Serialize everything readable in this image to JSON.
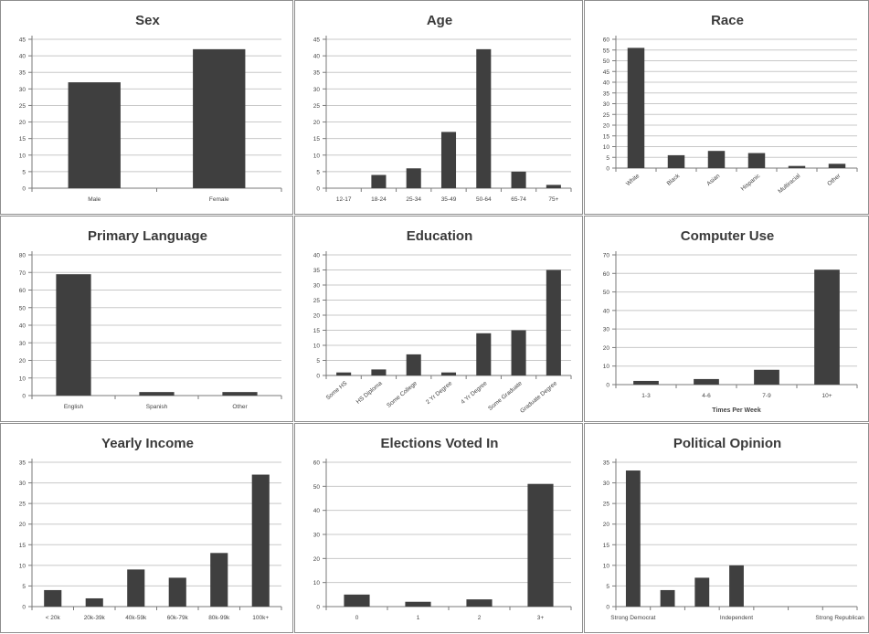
{
  "colors": {
    "bar": "#3f3f3f",
    "grid": "#c8c8c8",
    "axis": "#7a7a7a",
    "text": "#444444",
    "border": "#8e8e8e",
    "background": "#ffffff"
  },
  "chart_data": [
    {
      "type": "bar",
      "title": "Sex",
      "xlabel": "",
      "ylabel": "",
      "categories": [
        "Male",
        "Female"
      ],
      "values": [
        32,
        42
      ],
      "ylim": [
        0,
        45
      ],
      "yticks": [
        0,
        5,
        10,
        15,
        20,
        25,
        30,
        35,
        40,
        45
      ],
      "grid": true,
      "legend": "none",
      "rotate_labels": false
    },
    {
      "type": "bar",
      "title": "Age",
      "xlabel": "",
      "ylabel": "",
      "categories": [
        "12-17",
        "18-24",
        "25-34",
        "35-49",
        "50-64",
        "65-74",
        "75+"
      ],
      "values": [
        0,
        4,
        6,
        17,
        42,
        5,
        1
      ],
      "ylim": [
        0,
        45
      ],
      "yticks": [
        0,
        5,
        10,
        15,
        20,
        25,
        30,
        35,
        40,
        45
      ],
      "grid": true,
      "legend": "none",
      "rotate_labels": false
    },
    {
      "type": "bar",
      "title": "Race",
      "xlabel": "",
      "ylabel": "",
      "categories": [
        "White",
        "Black",
        "Asian",
        "Hispanic",
        "Multiracial",
        "Other"
      ],
      "values": [
        56,
        6,
        8,
        7,
        1,
        2
      ],
      "ylim": [
        0,
        60
      ],
      "yticks": [
        0,
        5,
        10,
        15,
        20,
        25,
        30,
        35,
        40,
        45,
        50,
        55,
        60
      ],
      "grid": true,
      "legend": "none",
      "rotate_labels": true
    },
    {
      "type": "bar",
      "title": "Primary Language",
      "xlabel": "",
      "ylabel": "",
      "categories": [
        "English",
        "Spanish",
        "Other"
      ],
      "values": [
        69,
        2,
        2
      ],
      "ylim": [
        0,
        80
      ],
      "yticks": [
        0,
        10,
        20,
        30,
        40,
        50,
        60,
        70,
        80
      ],
      "grid": true,
      "legend": "none",
      "rotate_labels": false
    },
    {
      "type": "bar",
      "title": "Education",
      "xlabel": "",
      "ylabel": "",
      "categories": [
        "Some HS",
        "HS Diploma",
        "Some College",
        "2 Yr Degree",
        "4 Yr Degree",
        "Some Graduate",
        "Graduate Degree"
      ],
      "values": [
        1,
        2,
        7,
        1,
        14,
        15,
        35
      ],
      "ylim": [
        0,
        40
      ],
      "yticks": [
        0,
        5,
        10,
        15,
        20,
        25,
        30,
        35,
        40
      ],
      "grid": true,
      "legend": "none",
      "rotate_labels": true
    },
    {
      "type": "bar",
      "title": "Computer Use",
      "xlabel": "Times Per Week",
      "ylabel": "",
      "categories": [
        "1-3",
        "4-6",
        "7-9",
        "10+"
      ],
      "values": [
        2,
        3,
        8,
        62
      ],
      "ylim": [
        0,
        70
      ],
      "yticks": [
        0,
        10,
        20,
        30,
        40,
        50,
        60,
        70
      ],
      "grid": true,
      "legend": "none",
      "rotate_labels": false
    },
    {
      "type": "bar",
      "title": "Yearly Income",
      "xlabel": "",
      "ylabel": "",
      "categories": [
        "< 20k",
        "20k-39k",
        "40k-59k",
        "60k-79k",
        "80k-99k",
        "100k+"
      ],
      "values": [
        4,
        2,
        9,
        7,
        13,
        32
      ],
      "ylim": [
        0,
        35
      ],
      "yticks": [
        0,
        5,
        10,
        15,
        20,
        25,
        30,
        35
      ],
      "grid": true,
      "legend": "none",
      "rotate_labels": false
    },
    {
      "type": "bar",
      "title": "Elections Voted In",
      "xlabel": "",
      "ylabel": "",
      "categories": [
        "0",
        "1",
        "2",
        "3+"
      ],
      "values": [
        5,
        2,
        3,
        51
      ],
      "ylim": [
        0,
        60
      ],
      "yticks": [
        0,
        10,
        20,
        30,
        40,
        50,
        60
      ],
      "grid": true,
      "legend": "none",
      "rotate_labels": false
    },
    {
      "type": "bar",
      "title": "Political Opinion",
      "xlabel": "",
      "ylabel": "",
      "categories": [
        "Strong Democrat",
        "",
        "",
        "Independent",
        "",
        "",
        "Strong Republican"
      ],
      "values": [
        33,
        4,
        7,
        10,
        0,
        0,
        0
      ],
      "ylim": [
        0,
        35
      ],
      "yticks": [
        0,
        5,
        10,
        15,
        20,
        25,
        30,
        35
      ],
      "grid": true,
      "legend": "none",
      "rotate_labels": false
    }
  ]
}
